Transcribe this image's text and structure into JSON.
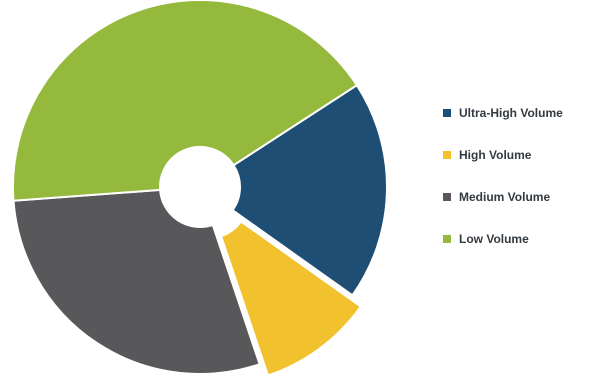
{
  "chart_data": {
    "type": "pie",
    "style": "donut-exploded",
    "categories": [
      "Ultra-High Volume",
      "High Volume",
      "Medium Volume",
      "Low Volume"
    ],
    "values": [
      19,
      10,
      29,
      42
    ],
    "colors": [
      "#1e4e74",
      "#f2c12e",
      "#58585b",
      "#94b93c"
    ],
    "legend_position": "right",
    "title": ""
  }
}
